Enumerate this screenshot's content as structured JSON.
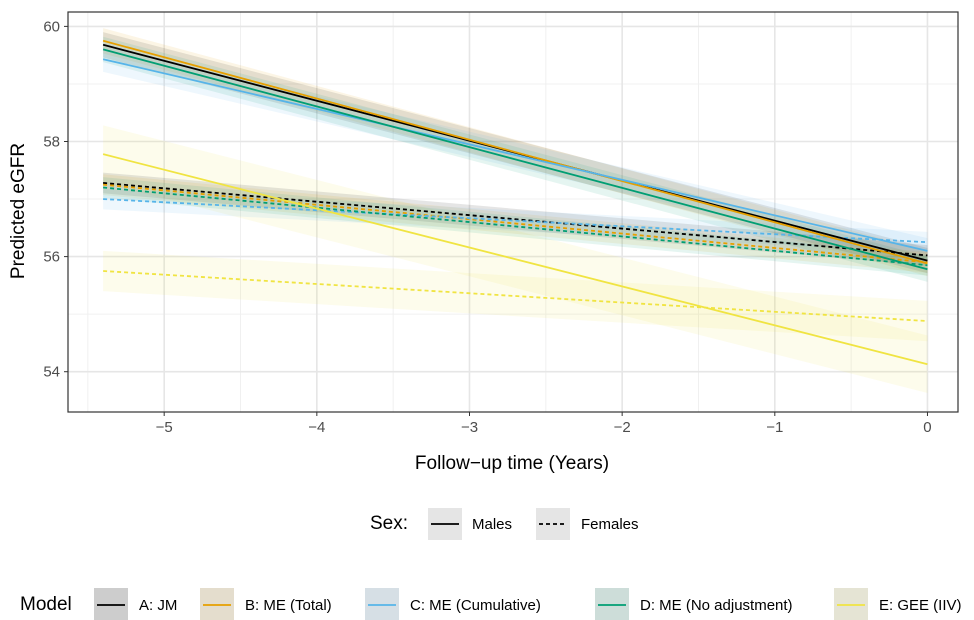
{
  "chart_data": {
    "type": "line",
    "title": "",
    "xlabel": "Follow−up time (Years)",
    "ylabel": "Predicted eGFR",
    "xlim": [
      -5.63,
      0.2
    ],
    "ylim": [
      53.3,
      60.25
    ],
    "x_ticks": [
      -5,
      -4,
      -3,
      -2,
      -1,
      0
    ],
    "x_tick_labels": [
      "−5",
      "−4",
      "−3",
      "−2",
      "−1",
      "0"
    ],
    "y_ticks": [
      54,
      56,
      58,
      60
    ],
    "y_tick_labels": [
      "54",
      "56",
      "58",
      "60"
    ],
    "grid": true,
    "legend_placement": "bottom",
    "sex_legend": {
      "title": "Sex:",
      "items": [
        {
          "label": "Males",
          "linetype": "solid"
        },
        {
          "label": "Females",
          "linetype": "dashed"
        }
      ]
    },
    "model_legend": {
      "title": "Model",
      "items": [
        {
          "label": "A: JM",
          "color": "#000000"
        },
        {
          "label": "B: ME (Total)",
          "color": "#E69F00"
        },
        {
          "label": "C: ME (Cumulative)",
          "color": "#56B4E9"
        },
        {
          "label": "D: ME (No adjustment)",
          "color": "#009E73"
        },
        {
          "label": "E: GEE (IIV)",
          "color": "#F0E442"
        }
      ]
    },
    "series": [
      {
        "model": "A: JM",
        "sex": "Males",
        "color": "#000000",
        "linetype": "solid",
        "x": [
          -5.4,
          0
        ],
        "y": [
          59.68,
          55.93
        ],
        "ci_halfwidth": 0.22
      },
      {
        "model": "B: ME (Total)",
        "sex": "Males",
        "color": "#E69F00",
        "linetype": "solid",
        "x": [
          -5.4,
          0
        ],
        "y": [
          59.75,
          55.88
        ],
        "ci_halfwidth": 0.22
      },
      {
        "model": "C: ME (Cumulative)",
        "sex": "Males",
        "color": "#56B4E9",
        "linetype": "solid",
        "x": [
          -5.4,
          0
        ],
        "y": [
          59.43,
          56.1
        ],
        "ci_halfwidth": 0.22
      },
      {
        "model": "D: ME (No adjustment)",
        "sex": "Males",
        "color": "#009E73",
        "linetype": "solid",
        "x": [
          -5.4,
          0
        ],
        "y": [
          59.6,
          55.78
        ],
        "ci_halfwidth": 0.22
      },
      {
        "model": "E: GEE (IIV)",
        "sex": "Males",
        "color": "#F0E442",
        "linetype": "solid",
        "x": [
          -5.4,
          0
        ],
        "y": [
          57.78,
          54.13
        ],
        "ci_halfwidth": 0.5
      },
      {
        "model": "A: JM",
        "sex": "Females",
        "color": "#000000",
        "linetype": "dashed",
        "x": [
          -5.4,
          0
        ],
        "y": [
          57.28,
          56.02
        ],
        "ci_halfwidth": 0.18
      },
      {
        "model": "B: ME (Total)",
        "sex": "Females",
        "color": "#E69F00",
        "linetype": "dashed",
        "x": [
          -5.4,
          0
        ],
        "y": [
          57.25,
          55.9
        ],
        "ci_halfwidth": 0.18
      },
      {
        "model": "C: ME (Cumulative)",
        "sex": "Females",
        "color": "#56B4E9",
        "linetype": "dashed",
        "x": [
          -5.4,
          0
        ],
        "y": [
          57.0,
          56.25
        ],
        "ci_halfwidth": 0.18
      },
      {
        "model": "D: ME (No adjustment)",
        "sex": "Females",
        "color": "#009E73",
        "linetype": "dashed",
        "x": [
          -5.4,
          0
        ],
        "y": [
          57.2,
          55.85
        ],
        "ci_halfwidth": 0.18
      },
      {
        "model": "E: GEE (IIV)",
        "sex": "Females",
        "color": "#F0E442",
        "linetype": "dashed",
        "x": [
          -5.4,
          0
        ],
        "y": [
          55.75,
          54.88
        ],
        "ci_halfwidth": 0.35
      }
    ]
  }
}
